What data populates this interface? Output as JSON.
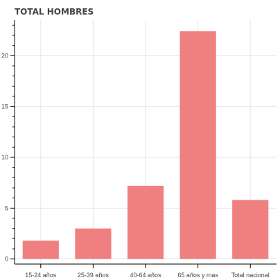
{
  "chart_data": {
    "type": "bar",
    "title": "TOTAL HOMBRES",
    "xlabel": "",
    "ylabel": "",
    "categories": [
      "15-24 años",
      "25-39 años",
      "40-64 años",
      "65 años y mas",
      "Total nacional"
    ],
    "values": [
      1.8,
      3.0,
      7.2,
      22.4,
      5.8
    ],
    "ylim": [
      -0.5,
      23.5
    ],
    "yticks": [
      0,
      5,
      10,
      15,
      20
    ],
    "grid": true,
    "bar_color": "#f08080"
  }
}
